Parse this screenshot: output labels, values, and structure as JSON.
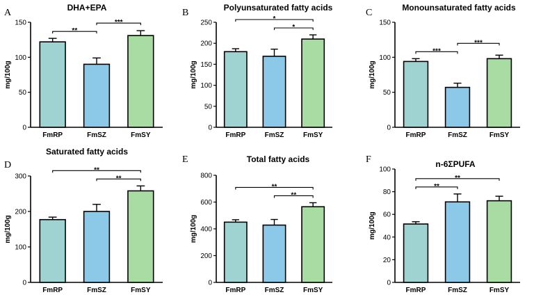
{
  "colors": [
    "#9fd3d1",
    "#8cc8e8",
    "#a8dca3"
  ],
  "chart_data": [
    {
      "type": "bar",
      "panel": "A",
      "title": "DHA+EPA",
      "ylabel": "mg/100g",
      "xlabel": "",
      "categories": [
        "FmRP",
        "FmSZ",
        "FmSY"
      ],
      "values": [
        122,
        90,
        131
      ],
      "errors": [
        5,
        9,
        7
      ],
      "ylim": [
        0,
        150
      ],
      "yticks": [
        0,
        50,
        100,
        150
      ],
      "significance": [
        {
          "from": 0,
          "to": 1,
          "label": "**"
        },
        {
          "from": 1,
          "to": 2,
          "label": "***"
        }
      ]
    },
    {
      "type": "bar",
      "panel": "B",
      "title": "Polyunsaturated fatty acids",
      "ylabel": "mg/100g",
      "xlabel": "",
      "categories": [
        "FmRP",
        "FmSZ",
        "FmSY"
      ],
      "values": [
        180,
        169,
        210
      ],
      "errors": [
        7,
        17,
        10
      ],
      "ylim": [
        0,
        250
      ],
      "yticks": [
        0,
        50,
        100,
        150,
        200,
        250
      ],
      "significance": [
        {
          "from": 0,
          "to": 2,
          "label": "*"
        },
        {
          "from": 1,
          "to": 2,
          "label": "*"
        }
      ]
    },
    {
      "type": "bar",
      "panel": "C",
      "title": "Monounsaturated fatty acids",
      "ylabel": "mg/100g",
      "xlabel": "",
      "categories": [
        "FmRP",
        "FmSZ",
        "FmSY"
      ],
      "values": [
        94,
        57,
        98
      ],
      "errors": [
        4,
        6,
        5
      ],
      "ylim": [
        0,
        150
      ],
      "yticks": [
        0,
        50,
        100,
        150
      ],
      "significance": [
        {
          "from": 0,
          "to": 1,
          "label": "***"
        },
        {
          "from": 1,
          "to": 2,
          "label": "***"
        }
      ]
    },
    {
      "type": "bar",
      "panel": "D",
      "title": "Saturated fatty acids",
      "ylabel": "mg/100g",
      "xlabel": "",
      "categories": [
        "FmRP",
        "FmSZ",
        "FmSY"
      ],
      "values": [
        177,
        200,
        258
      ],
      "errors": [
        7,
        20,
        14
      ],
      "ylim": [
        0,
        300
      ],
      "yticks": [
        0,
        100,
        200,
        300
      ],
      "significance": [
        {
          "from": 0,
          "to": 2,
          "label": "**"
        },
        {
          "from": 1,
          "to": 2,
          "label": "**"
        }
      ]
    },
    {
      "type": "bar",
      "panel": "E",
      "title": "Total fatty acids",
      "ylabel": "mg/100g",
      "xlabel": "",
      "categories": [
        "FmRP",
        "FmSZ",
        "FmSY"
      ],
      "values": [
        450,
        428,
        565
      ],
      "errors": [
        18,
        42,
        30
      ],
      "ylim": [
        0,
        800
      ],
      "yticks": [
        0,
        200,
        400,
        600,
        800
      ],
      "significance": [
        {
          "from": 0,
          "to": 2,
          "label": "**"
        },
        {
          "from": 1,
          "to": 2,
          "label": "**"
        }
      ]
    },
    {
      "type": "bar",
      "panel": "F",
      "title": "n-6ΣPUFA",
      "ylabel": "mg/100g",
      "xlabel": "",
      "categories": [
        "FmRP",
        "FmSZ",
        "FmSY"
      ],
      "values": [
        51.5,
        71,
        72
      ],
      "errors": [
        2,
        7,
        4
      ],
      "ylim": [
        0,
        100
      ],
      "yticks": [
        0,
        20,
        40,
        60,
        80,
        100
      ],
      "significance": [
        {
          "from": 0,
          "to": 1,
          "label": "**"
        },
        {
          "from": 0,
          "to": 2,
          "label": "**"
        }
      ]
    }
  ]
}
